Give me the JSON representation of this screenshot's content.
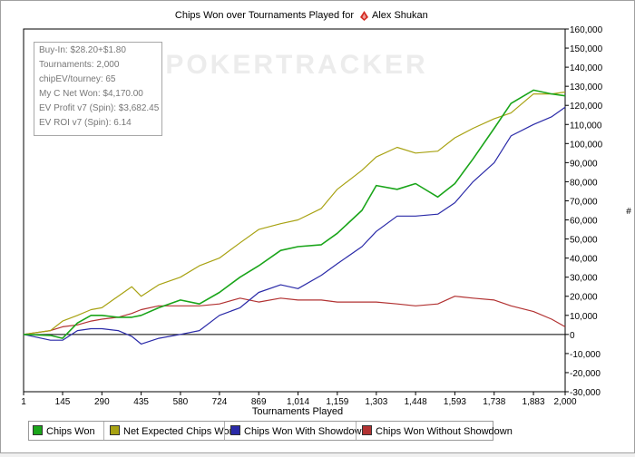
{
  "header": {
    "title_prefix": "Chips Won over Tournaments Played for",
    "player": "Alex Shukan"
  },
  "watermark": "POKERTRACKER",
  "stats": [
    "Buy-In: $28.20+$1.80",
    "Tournaments: 2,000",
    "chipEV/tourney: 65",
    "My C Net Won: $4,170.00",
    "EV Profit v7 (Spin): $3,682.45",
    "EV ROI v7 (Spin): 6.14"
  ],
  "colors": {
    "chips_won": "#1aa51a",
    "net_expected": "#a8a212",
    "with_showdown": "#2a2aa8",
    "without_showdown": "#b23232"
  },
  "chart_data": {
    "type": "line",
    "title": "Chips Won over Tournaments Played for Alex Shukan",
    "xlabel": "Tournaments Played",
    "ylabel": "#",
    "xlim": [
      1,
      2000
    ],
    "ylim": [
      -30000,
      160000
    ],
    "x_ticks": [
      "1",
      "145",
      "290",
      "435",
      "580",
      "724",
      "869",
      "1,014",
      "1,159",
      "1,303",
      "1,448",
      "1,593",
      "1,738",
      "1,883",
      "2,000"
    ],
    "y_ticks": [
      "-30,000",
      "-20,000",
      "-10,000",
      "0",
      "10,000",
      "20,000",
      "30,000",
      "40,000",
      "50,000",
      "60,000",
      "70,000",
      "80,000",
      "90,000",
      "100,000",
      "110,000",
      "120,000",
      "130,000",
      "140,000",
      "150,000",
      "160,000"
    ],
    "legend_position": "bottom",
    "grid": false,
    "x": [
      1,
      100,
      145,
      200,
      250,
      290,
      350,
      400,
      435,
      500,
      580,
      650,
      724,
      800,
      869,
      950,
      1014,
      1100,
      1159,
      1250,
      1303,
      1380,
      1448,
      1530,
      1593,
      1660,
      1738,
      1800,
      1883,
      1950,
      2000
    ],
    "series": [
      {
        "name": "Chips Won",
        "color_key": "chips_won",
        "values": [
          0,
          -500,
          -2000,
          6000,
          10000,
          10000,
          9000,
          9000,
          10000,
          14000,
          18000,
          16000,
          22000,
          30000,
          36000,
          44000,
          46000,
          47000,
          53000,
          65000,
          78000,
          76000,
          79000,
          72000,
          79000,
          92000,
          108000,
          121000,
          128000,
          126000,
          125000
        ]
      },
      {
        "name": "Net Expected Chips Won",
        "color_key": "net_expected",
        "values": [
          0,
          2000,
          7000,
          10000,
          13000,
          14000,
          20000,
          25000,
          20000,
          26000,
          30000,
          36000,
          40000,
          48000,
          55000,
          58000,
          60000,
          66000,
          76000,
          86000,
          93000,
          98000,
          95000,
          96000,
          103000,
          108000,
          113000,
          116000,
          126000,
          126000,
          127000
        ]
      },
      {
        "name": "Chips Won With Showdown",
        "color_key": "with_showdown",
        "values": [
          0,
          -3000,
          -3000,
          2000,
          3000,
          3000,
          2000,
          -1000,
          -5000,
          -2000,
          0,
          2000,
          10000,
          14000,
          22000,
          26000,
          24000,
          31000,
          37000,
          46000,
          54000,
          62000,
          62000,
          63000,
          69000,
          80000,
          90000,
          104000,
          110000,
          114000,
          119000
        ]
      },
      {
        "name": "Chips Won Without Showdown",
        "color_key": "without_showdown",
        "values": [
          0,
          2000,
          4000,
          5000,
          7000,
          8000,
          9000,
          11000,
          13000,
          15000,
          15000,
          15000,
          16000,
          19000,
          17000,
          19000,
          18000,
          18000,
          17000,
          17000,
          17000,
          16000,
          15000,
          16000,
          20000,
          19000,
          18000,
          15000,
          12000,
          8000,
          4000
        ]
      }
    ]
  }
}
